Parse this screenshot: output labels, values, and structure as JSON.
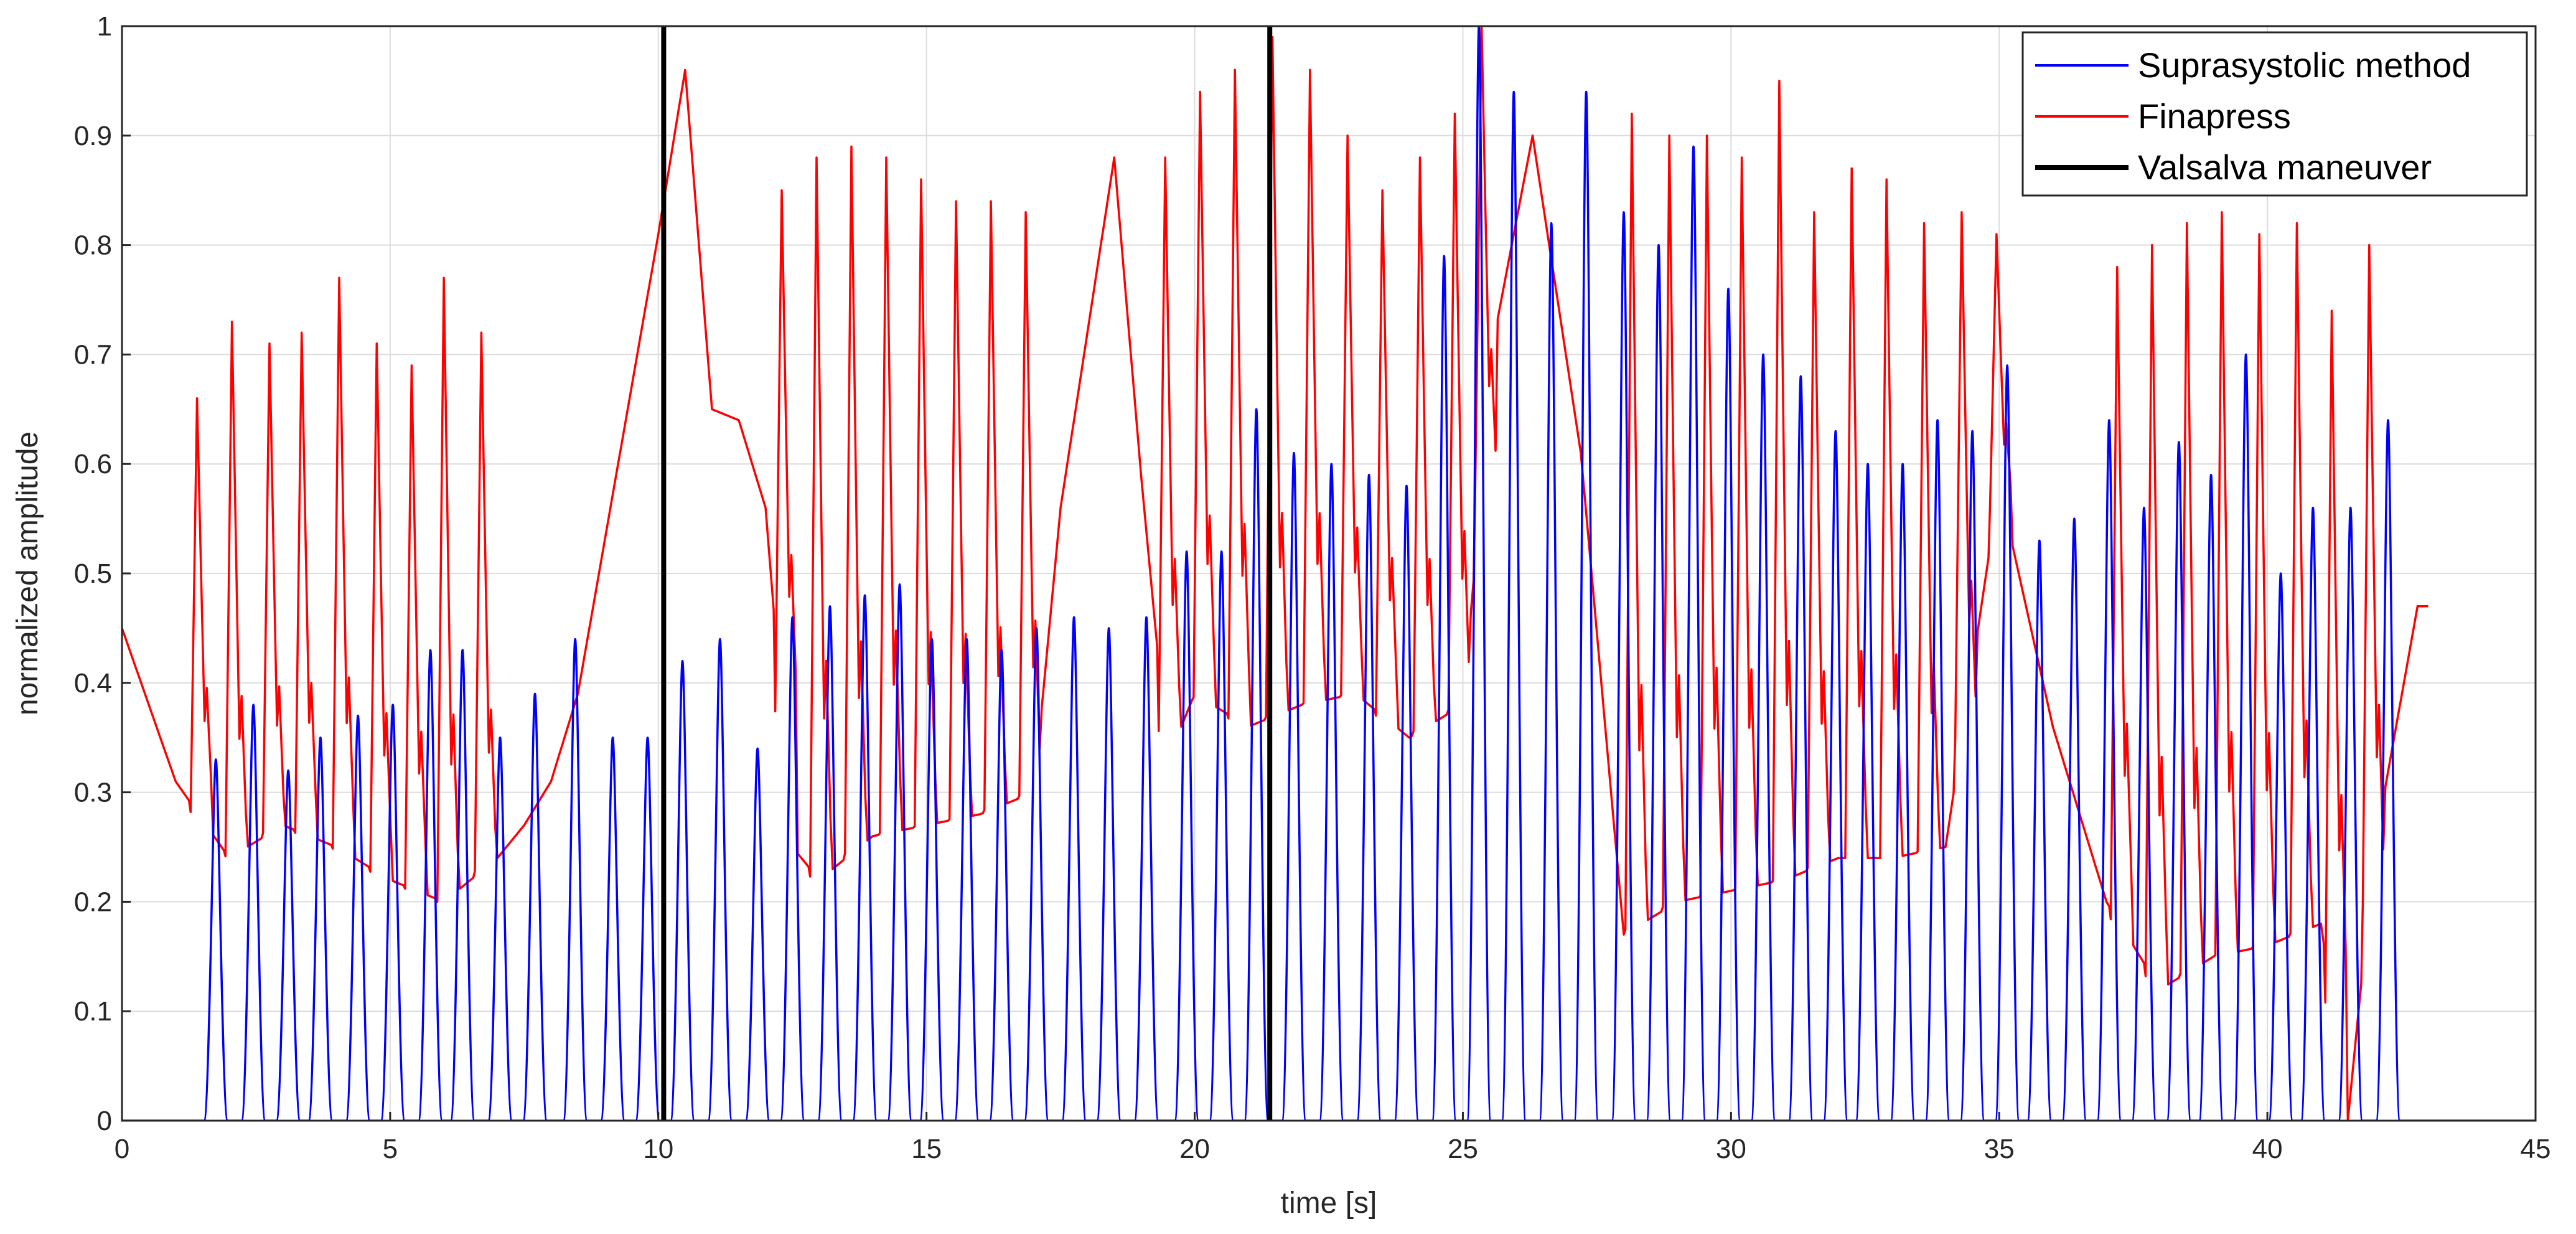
{
  "chart_data": {
    "type": "line",
    "title": "",
    "xlabel": "time [s]",
    "ylabel": "normalized amplitude",
    "xlim": [
      0,
      45
    ],
    "ylim": [
      0,
      1
    ],
    "xticks": [
      0,
      5,
      10,
      15,
      20,
      25,
      30,
      35,
      40,
      45
    ],
    "yticks": [
      0,
      0.1,
      0.2,
      0.3,
      0.4,
      0.5,
      0.6,
      0.7,
      0.8,
      0.9,
      1
    ],
    "grid": true,
    "legend_location": "top-right",
    "colors": {
      "suprasystolic": "#0000ff",
      "finapress": "#ff0000",
      "valsalva": "#000000",
      "grid": "#dcdcdc",
      "axes": "#262626"
    },
    "series": [
      {
        "name": "Suprasystolic method",
        "kind": "pulse_peaks",
        "baseline": 0,
        "peak_times": [
          1.75,
          2.45,
          3.1,
          3.7,
          4.4,
          5.05,
          5.75,
          6.35,
          7.05,
          7.7,
          8.45,
          9.15,
          9.8,
          10.45,
          11.15,
          11.85,
          12.5,
          13.2,
          13.85,
          14.5,
          15.1,
          15.75,
          16.4,
          17.05,
          17.75,
          18.4,
          19.1,
          19.85,
          20.5,
          21.15,
          21.85,
          22.55,
          23.25,
          23.95,
          24.65,
          25.3,
          25.95,
          26.65,
          27.3,
          28.0,
          28.65,
          29.3,
          29.95,
          30.6,
          31.3,
          31.95,
          32.55,
          33.2,
          33.85,
          34.5,
          35.15,
          35.75,
          36.4,
          37.05,
          37.7,
          38.35,
          38.95,
          39.6,
          40.25,
          40.85,
          41.55,
          42.25
        ],
        "peak_values": [
          0.33,
          0.38,
          0.32,
          0.35,
          0.37,
          0.38,
          0.43,
          0.43,
          0.35,
          0.39,
          0.44,
          0.35,
          0.35,
          0.42,
          0.44,
          0.34,
          0.46,
          0.47,
          0.48,
          0.49,
          0.44,
          0.44,
          0.43,
          0.45,
          0.46,
          0.45,
          0.46,
          0.52,
          0.52,
          0.65,
          0.61,
          0.6,
          0.59,
          0.58,
          0.79,
          1.0,
          0.94,
          0.82,
          0.94,
          0.83,
          0.8,
          0.89,
          0.76,
          0.7,
          0.68,
          0.63,
          0.6,
          0.6,
          0.64,
          0.63,
          0.69,
          0.53,
          0.55,
          0.64,
          0.56,
          0.62,
          0.59,
          0.7,
          0.5,
          0.56,
          0.56,
          0.64
        ]
      },
      {
        "name": "Finapress",
        "kind": "pressure_waveform",
        "baseline": [
          [
            0,
            0.45
          ],
          [
            1.0,
            0.31
          ],
          [
            2.0,
            0.24
          ],
          [
            3.0,
            0.27
          ],
          [
            4.0,
            0.25
          ],
          [
            5.0,
            0.22
          ],
          [
            6.0,
            0.2
          ],
          [
            7.0,
            0.24
          ],
          [
            7.5,
            0.27
          ],
          [
            8.0,
            0.31
          ],
          [
            8.5,
            0.39
          ],
          [
            9.0,
            0.53
          ],
          [
            9.5,
            0.67
          ],
          [
            10.0,
            0.81
          ],
          [
            10.5,
            0.96
          ],
          [
            11.0,
            0.65
          ],
          [
            11.5,
            0.64
          ],
          [
            12.0,
            0.56
          ],
          [
            12.5,
            0.25
          ],
          [
            13.0,
            0.22
          ],
          [
            14.0,
            0.26
          ],
          [
            15.0,
            0.27
          ],
          [
            16.0,
            0.28
          ],
          [
            17.0,
            0.3
          ],
          [
            17.5,
            0.56
          ],
          [
            18.0,
            0.72
          ],
          [
            18.5,
            0.88
          ],
          [
            19.0,
            0.59
          ],
          [
            19.5,
            0.33
          ],
          [
            20.0,
            0.39
          ],
          [
            21.0,
            0.36
          ],
          [
            22.0,
            0.38
          ],
          [
            23.0,
            0.39
          ],
          [
            24.0,
            0.35
          ],
          [
            25.0,
            0.38
          ],
          [
            25.6,
            0.72
          ],
          [
            26.3,
            0.9
          ],
          [
            27.2,
            0.61
          ],
          [
            28.0,
            0.17
          ],
          [
            29.0,
            0.2
          ],
          [
            30.0,
            0.21
          ],
          [
            31.0,
            0.22
          ],
          [
            32.0,
            0.24
          ],
          [
            33.0,
            0.24
          ],
          [
            34.0,
            0.25
          ],
          [
            35.0,
            0.58
          ],
          [
            36.0,
            0.36
          ],
          [
            37.0,
            0.2
          ],
          [
            38.0,
            0.12
          ],
          [
            39.0,
            0.15
          ],
          [
            40.0,
            0.16
          ],
          [
            41.0,
            0.18
          ],
          [
            41.5,
            0.0
          ],
          [
            42.0,
            0.25
          ],
          [
            42.8,
            0.47
          ],
          [
            43.0,
            0.47
          ]
        ],
        "peak_times": [
          1.4,
          2.05,
          2.75,
          3.35,
          4.05,
          4.75,
          5.4,
          6.0,
          6.7,
          12.3,
          12.95,
          13.6,
          14.25,
          14.9,
          15.55,
          16.2,
          16.85,
          19.45,
          20.1,
          20.75,
          21.45,
          22.15,
          22.85,
          23.5,
          24.2,
          24.85,
          25.35,
          28.15,
          28.85,
          29.55,
          30.2,
          30.9,
          31.55,
          32.25,
          32.9,
          33.6,
          34.3,
          34.95,
          37.2,
          37.85,
          38.5,
          39.15,
          39.85,
          40.55,
          41.2,
          41.9
        ],
        "peak_values": [
          0.66,
          0.73,
          0.71,
          0.72,
          0.77,
          0.71,
          0.69,
          0.77,
          0.72,
          0.85,
          0.88,
          0.89,
          0.88,
          0.86,
          0.84,
          0.84,
          0.83,
          0.88,
          0.94,
          0.96,
          0.99,
          0.96,
          0.9,
          0.85,
          0.88,
          0.92,
          1.0,
          0.92,
          0.9,
          0.9,
          0.88,
          0.95,
          0.83,
          0.87,
          0.86,
          0.82,
          0.83,
          0.81,
          0.78,
          0.8,
          0.82,
          0.83,
          0.81,
          0.82,
          0.74,
          0.8
        ]
      },
      {
        "name": "Valsalva maneuver",
        "kind": "vertical_markers",
        "x": [
          10.1,
          21.4
        ]
      }
    ]
  }
}
